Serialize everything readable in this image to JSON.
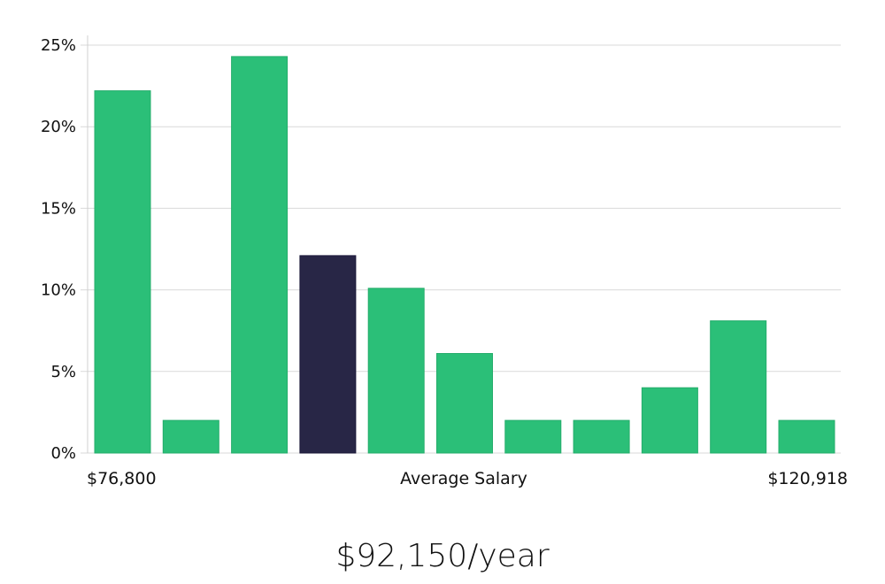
{
  "chart_data": {
    "type": "bar",
    "title": "",
    "xlabel": "Average Salary",
    "ylabel": "",
    "x_min_label": "$76,800",
    "x_max_label": "$120,918",
    "values": [
      22.2,
      2.0,
      24.3,
      12.1,
      10.1,
      6.1,
      2.0,
      2.0,
      4.0,
      8.1,
      2.0
    ],
    "highlight_index": 3,
    "ylim": [
      0,
      25
    ],
    "yticks": [
      0,
      5,
      10,
      15,
      20,
      25
    ],
    "ytick_labels": [
      "0%",
      "5%",
      "10%",
      "15%",
      "20%",
      "25%"
    ],
    "grid": true
  },
  "colors": {
    "bar": "#2bbf78",
    "highlight": "#282646",
    "grid": "#d9d9d9"
  },
  "summary": {
    "salary": "$92,150/year"
  }
}
